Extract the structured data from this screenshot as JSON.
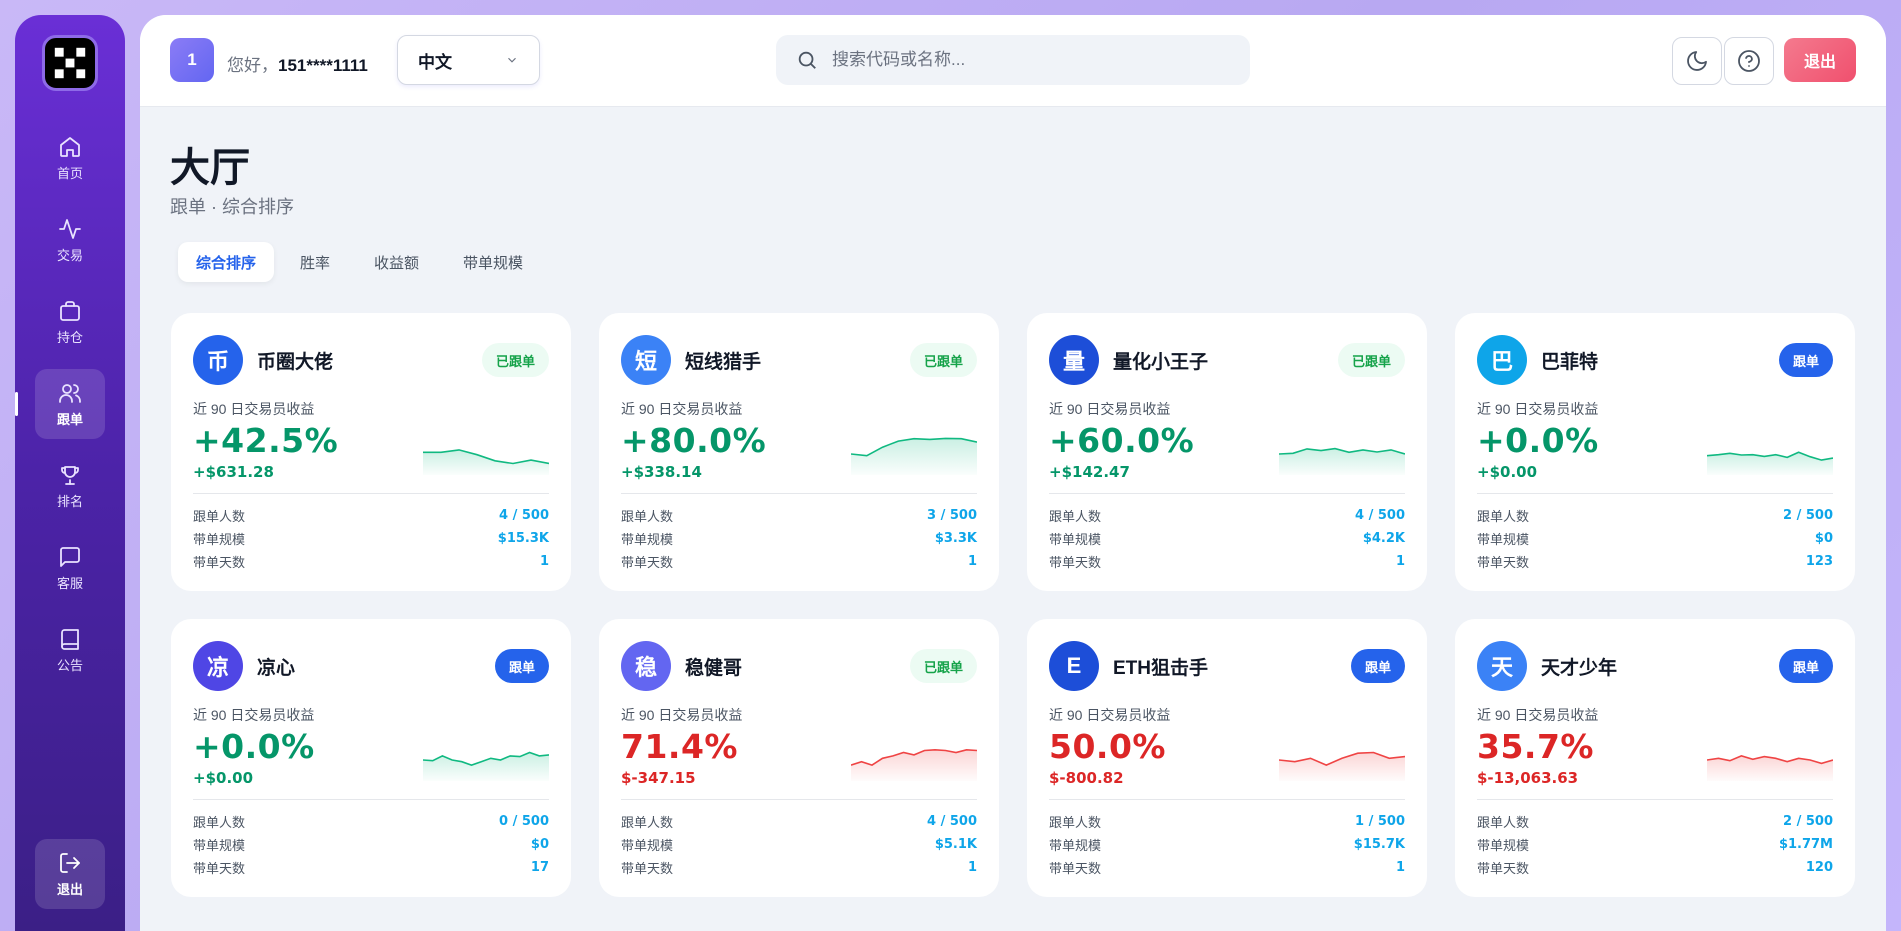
{
  "sidebar": {
    "items": [
      {
        "label": "首页",
        "icon": "home-icon",
        "name": "sidebar-item-home",
        "active": false
      },
      {
        "label": "交易",
        "icon": "activity-icon",
        "name": "sidebar-item-trade",
        "active": false
      },
      {
        "label": "持仓",
        "icon": "briefcase-icon",
        "name": "sidebar-item-positions",
        "active": false
      },
      {
        "label": "跟单",
        "icon": "users-icon",
        "name": "sidebar-item-copytrade",
        "active": true
      },
      {
        "label": "排名",
        "icon": "trophy-icon",
        "name": "sidebar-item-ranking",
        "active": false
      },
      {
        "label": "客服",
        "icon": "chat-icon",
        "name": "sidebar-item-support",
        "active": false
      },
      {
        "label": "公告",
        "icon": "book-icon",
        "name": "sidebar-item-notices",
        "active": false
      }
    ],
    "logout_label": "退出"
  },
  "header": {
    "user_badge": "1",
    "greeting": "您好，",
    "username": "151****1111",
    "language": "中文",
    "search_placeholder": "搜索代码或名称...",
    "logout_label": "退出"
  },
  "page": {
    "title": "大厅",
    "subtitle": "跟单 · 综合排序",
    "tabs": [
      "综合排序",
      "胜率",
      "收益额",
      "带单规模"
    ],
    "active_tab": 0
  },
  "labels": {
    "perf_label": "近 90 日交易员收益",
    "followers": "跟单人数",
    "scale": "带单规模",
    "days": "带单天数"
  },
  "colors": {
    "positive": "#059669",
    "negative": "#dc2626",
    "accent": "#2563eb"
  },
  "traders": [
    {
      "initial": "币",
      "name": "币圈大佬",
      "status": "已跟单",
      "followed": true,
      "pct": "+42.5%",
      "amount": "+$631.28",
      "trend": "pos",
      "avatar": "#2563eb",
      "followers": "4 / 500",
      "scale": "$15.3K",
      "days": "1",
      "spark": [
        0.55,
        0.55,
        0.62,
        0.48,
        0.3,
        0.22,
        0.32,
        0.22
      ]
    },
    {
      "initial": "短",
      "name": "短线猎手",
      "status": "已跟单",
      "followed": true,
      "pct": "+80.0%",
      "amount": "+$338.14",
      "trend": "pos",
      "avatar": "#3b82f6",
      "followers": "3 / 500",
      "scale": "$3.3K",
      "days": "1",
      "spark": [
        0.5,
        0.45,
        0.7,
        0.88,
        0.95,
        0.93,
        0.96,
        0.95,
        0.85
      ]
    },
    {
      "initial": "量",
      "name": "量化小王子",
      "status": "已跟单",
      "followed": true,
      "pct": "+60.0%",
      "amount": "+$142.47",
      "trend": "pos",
      "avatar": "#1d4ed8",
      "followers": "4 / 500",
      "scale": "$4.2K",
      "days": "1",
      "spark": [
        0.5,
        0.52,
        0.65,
        0.6,
        0.66,
        0.55,
        0.62,
        0.56,
        0.62,
        0.5
      ]
    },
    {
      "initial": "巴",
      "name": "巴菲特",
      "status": "跟单",
      "followed": false,
      "pct": "+0.0%",
      "amount": "+$0.00",
      "trend": "pos",
      "avatar": "#0ea5e9",
      "followers": "2 / 500",
      "scale": "$0",
      "days": "123",
      "spark": [
        0.45,
        0.48,
        0.52,
        0.47,
        0.48,
        0.43,
        0.48,
        0.4,
        0.55,
        0.42,
        0.32,
        0.38
      ]
    },
    {
      "initial": "凉",
      "name": "凉心",
      "status": "跟单",
      "followed": false,
      "pct": "+0.0%",
      "amount": "+$0.00",
      "trend": "pos",
      "avatar": "#4f46e5",
      "followers": "0 / 500",
      "scale": "$0",
      "days": "17",
      "spark": [
        0.5,
        0.48,
        0.62,
        0.5,
        0.45,
        0.35,
        0.45,
        0.55,
        0.5,
        0.62,
        0.6,
        0.72,
        0.62,
        0.65
      ]
    },
    {
      "initial": "稳",
      "name": "稳健哥",
      "status": "已跟单",
      "followed": true,
      "pct": "71.4%",
      "amount": "$-347.15",
      "trend": "neg",
      "avatar": "#6366f1",
      "followers": "4 / 500",
      "scale": "$5.1K",
      "days": "1",
      "spark": [
        0.35,
        0.45,
        0.35,
        0.55,
        0.62,
        0.72,
        0.65,
        0.78,
        0.8,
        0.78,
        0.72,
        0.8,
        0.78
      ]
    },
    {
      "initial": "E",
      "name": "ETH狙击手",
      "status": "跟单",
      "followed": false,
      "pct": "50.0%",
      "amount": "$-800.82",
      "trend": "neg",
      "avatar": "#1d4ed8",
      "followers": "1 / 500",
      "scale": "$15.7K",
      "days": "1",
      "spark": [
        0.5,
        0.45,
        0.55,
        0.35,
        0.55,
        0.7,
        0.72,
        0.55,
        0.6
      ]
    },
    {
      "initial": "天",
      "name": "天才少年",
      "status": "跟单",
      "followed": false,
      "pct": "35.7%",
      "amount": "$-13,063.63",
      "trend": "neg",
      "avatar": "#3b82f6",
      "followers": "2 / 500",
      "scale": "$1.77M",
      "days": "120",
      "spark": [
        0.5,
        0.55,
        0.48,
        0.62,
        0.52,
        0.6,
        0.55,
        0.45,
        0.55,
        0.5,
        0.4,
        0.5
      ]
    }
  ]
}
